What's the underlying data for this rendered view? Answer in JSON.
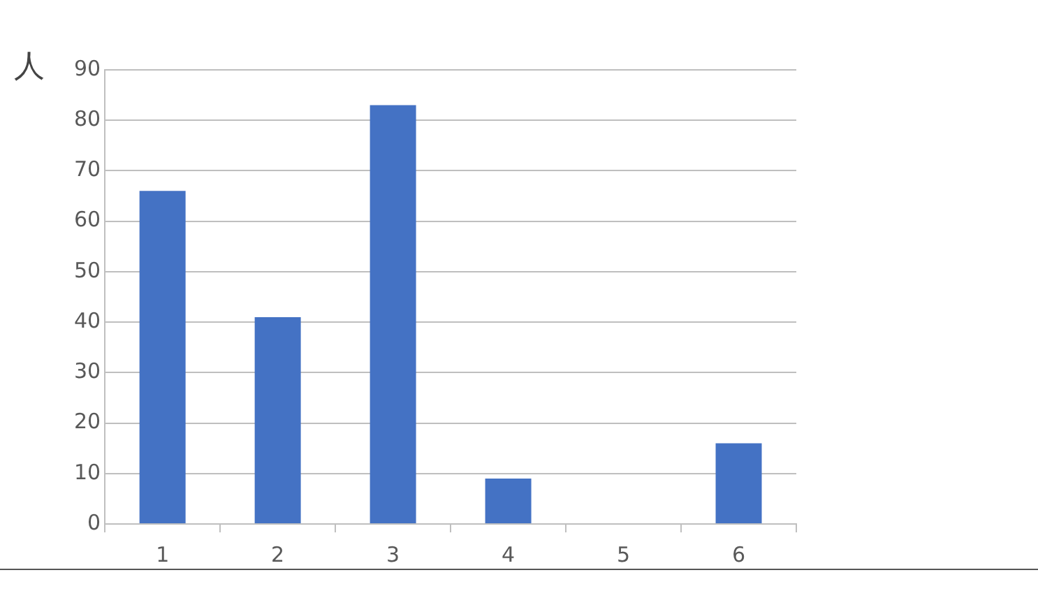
{
  "chart_data": {
    "type": "bar",
    "ylabel": "人",
    "categories": [
      "1",
      "2",
      "3",
      "4",
      "5",
      "6"
    ],
    "values": [
      66,
      41,
      83,
      9,
      0,
      16
    ],
    "color": "#4472c4",
    "ylim": [
      0,
      90
    ],
    "yticks": [
      0,
      10,
      20,
      30,
      40,
      50,
      60,
      70,
      80,
      90
    ],
    "grid": "y",
    "legend": false
  }
}
